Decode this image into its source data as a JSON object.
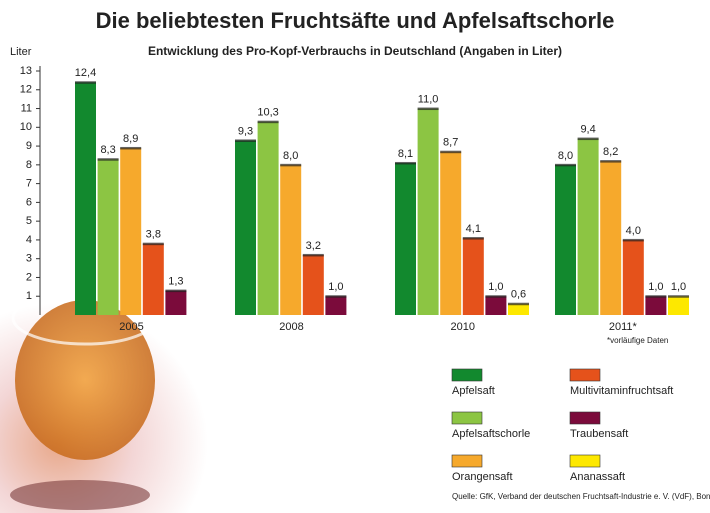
{
  "chart_data": {
    "type": "bar",
    "title": "Die beliebtesten Fruchtsäfte und Apfelsaftschorle",
    "subtitle": "Entwicklung des Pro-Kopf-Verbrauchs in Deutschland (Angaben in Liter)",
    "y_label": "Liter",
    "note": "*vorläufige Daten",
    "source": "Quelle: GfK, Verband der deutschen Fruchtsaft-Industrie e. V. (VdF), Bonn",
    "categories": [
      "2005",
      "2008",
      "2010",
      "2011*"
    ],
    "ylim": [
      0,
      13
    ],
    "yticks": [
      1,
      2,
      3,
      4,
      5,
      6,
      7,
      8,
      9,
      10,
      11,
      12,
      13
    ],
    "series": [
      {
        "name": "Apfelsaft",
        "color": "#12892e",
        "values": [
          12.4,
          9.3,
          8.1,
          8.0
        ],
        "value_labels": [
          "12,4",
          "9,3",
          "8,1",
          "8,0"
        ]
      },
      {
        "name": "Apfelsaftschorle",
        "color": "#8cc543",
        "values": [
          8.3,
          10.3,
          11.0,
          9.4
        ],
        "value_labels": [
          "8,3",
          "10,3",
          "11,0",
          "9,4"
        ]
      },
      {
        "name": "Orangensaft",
        "color": "#f6a92c",
        "values": [
          8.9,
          8.0,
          8.7,
          8.2
        ],
        "value_labels": [
          "8,9",
          "8,0",
          "8,7",
          "8,2"
        ]
      },
      {
        "name": "Multivitaminfruchtsaft",
        "color": "#e5521b",
        "values": [
          3.8,
          3.2,
          4.1,
          4.0
        ],
        "value_labels": [
          "3,8",
          "3,2",
          "4,1",
          "4,0"
        ]
      },
      {
        "name": "Traubensaft",
        "color": "#7b0b3b",
        "values": [
          1.3,
          1.0,
          1.0,
          1.0
        ],
        "value_labels": [
          "1,3",
          "1,0",
          "1,0",
          "1,0"
        ]
      },
      {
        "name": "Ananassaft",
        "color": "#fde800",
        "values": [
          null,
          null,
          0.6,
          1.0
        ],
        "value_labels": [
          null,
          null,
          "0,6",
          "1,0"
        ]
      }
    ]
  }
}
